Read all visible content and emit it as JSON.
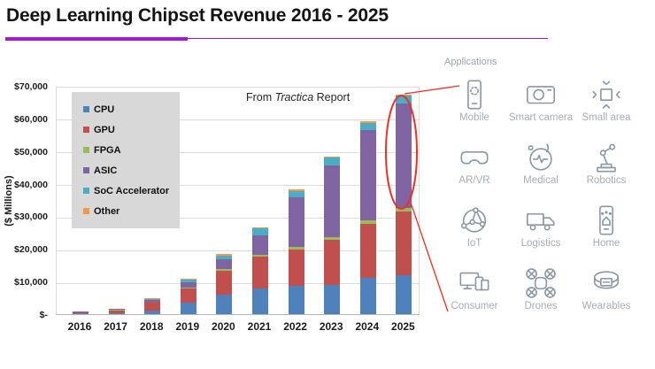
{
  "title": "Deep Learning Chipset Revenue 2016 - 2025",
  "ui_colors": {
    "title_underline": "#a21bce",
    "annotation_red": "#ee2f24",
    "icon_stroke": "#8b97a3",
    "icon_label": "#a6adb4",
    "legend_bg": "#d8d8d8",
    "gridline": "#dcdcdc",
    "axis_line": "#b5b5b5"
  },
  "chart_data": {
    "type": "bar",
    "stacked": true,
    "title": "",
    "ylabel": "($ Millions)",
    "categories": [
      "2016",
      "2017",
      "2018",
      "2019",
      "2020",
      "2021",
      "2022",
      "2023",
      "2024",
      "2025"
    ],
    "series": [
      {
        "name": "CPU",
        "color": "#4F81BD",
        "values": [
          150,
          300,
          1100,
          3400,
          6000,
          8000,
          8800,
          8900,
          11000,
          12000
        ]
      },
      {
        "name": "GPU",
        "color": "#C0504D",
        "values": [
          400,
          900,
          2700,
          4600,
          7400,
          9700,
          11000,
          13800,
          16700,
          19600
        ]
      },
      {
        "name": "FPGA",
        "color": "#9BBB59",
        "values": [
          30,
          60,
          120,
          250,
          350,
          450,
          900,
          900,
          1200,
          1000
        ]
      },
      {
        "name": "ASIC",
        "color": "#8064A2",
        "values": [
          120,
          250,
          350,
          1500,
          3000,
          6100,
          15100,
          22000,
          27600,
          31900
        ]
      },
      {
        "name": "SoC Accelerator",
        "color": "#4BACC6",
        "values": [
          50,
          150,
          450,
          900,
          1300,
          2000,
          2000,
          2300,
          2200,
          2400
        ]
      },
      {
        "name": "Other",
        "color": "#F79646",
        "values": [
          10,
          40,
          60,
          150,
          350,
          450,
          400,
          400,
          400,
          450
        ]
      }
    ],
    "y_ticks": [
      "$70,000",
      "$60,000",
      "$50,000",
      "$40,000",
      "$30,000",
      "$20,000",
      "$10,000",
      "$-"
    ],
    "ylim": [
      0,
      70000
    ],
    "grid": true,
    "legend_position": "upper-left-inside",
    "source_note": {
      "pre": "From ",
      "italic": "Tractica",
      "post": " Report"
    },
    "annotation": {
      "shape": "ellipse",
      "highlighted_category": "2025",
      "links_to": "Applications"
    }
  },
  "applications": {
    "label": "Applications",
    "items": [
      {
        "name": "Mobile",
        "icon": "mobile-icon"
      },
      {
        "name": "Smart camera",
        "icon": "smart-camera-icon"
      },
      {
        "name": "Small area",
        "icon": "small-area-icon"
      },
      {
        "name": "AR/VR",
        "icon": "ar-vr-icon"
      },
      {
        "name": "Medical",
        "icon": "medical-icon"
      },
      {
        "name": "Robotics",
        "icon": "robotics-icon"
      },
      {
        "name": "IoT",
        "icon": "iot-icon"
      },
      {
        "name": "Logistics",
        "icon": "logistics-icon"
      },
      {
        "name": "Home",
        "icon": "home-icon"
      },
      {
        "name": "Consumer",
        "icon": "consumer-icon"
      },
      {
        "name": "Drones",
        "icon": "drones-icon"
      },
      {
        "name": "Wearables",
        "icon": "wearables-icon"
      }
    ]
  }
}
